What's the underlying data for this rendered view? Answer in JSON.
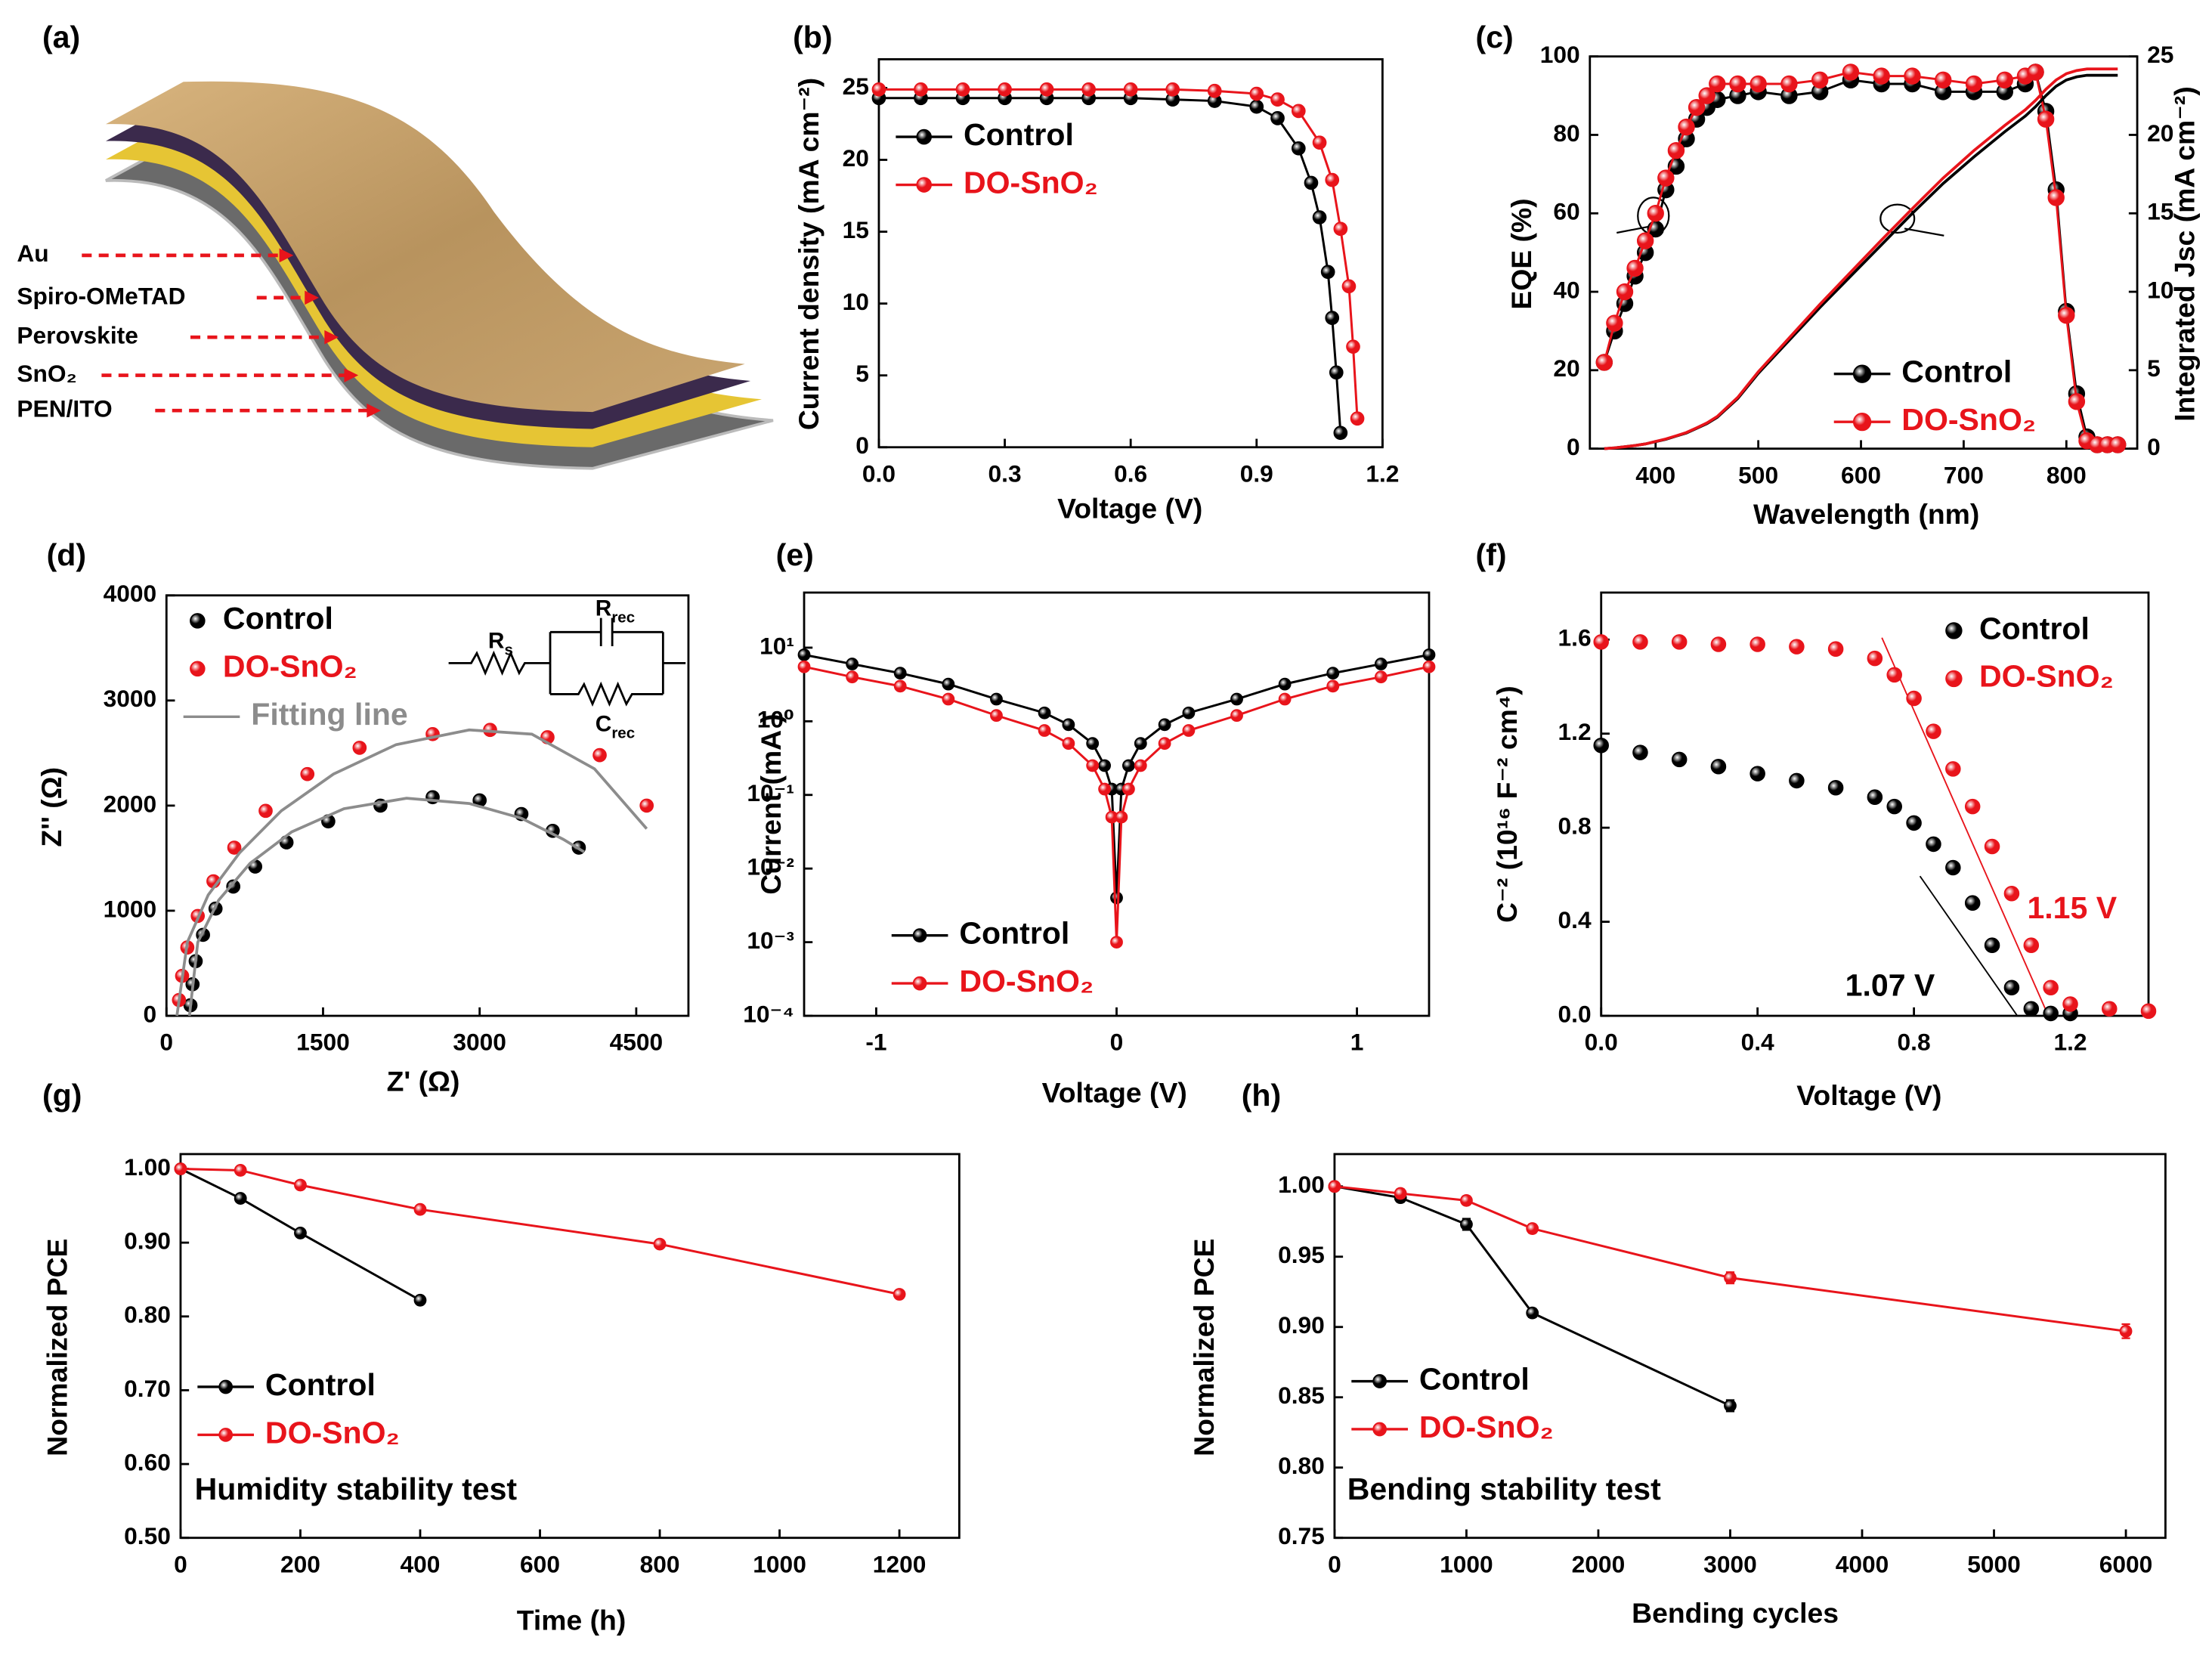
{
  "diagram": {
    "label": "(a)",
    "layers": [
      "Au",
      "Spiro-OMeTAD",
      "Perovskite",
      "SnO₂",
      "PEN/ITO"
    ]
  },
  "chart_data": [
    {
      "panel": "(b)",
      "type": "line",
      "xlabel": "Voltage (V)",
      "ylabel": "Current density (mA cm⁻²)",
      "xlim": [
        0,
        1.2
      ],
      "ylim": [
        0,
        27
      ],
      "xticks": [
        {
          "value": 0,
          "label": "0.0"
        },
        0.3,
        0.6,
        0.9,
        1.2
      ],
      "yticks": [
        0,
        5,
        10,
        15,
        20,
        25
      ],
      "legend": "upper left",
      "series": [
        {
          "name": "Control",
          "color": "#000000",
          "mode": "lines+markers",
          "x": [
            0,
            0.1,
            0.2,
            0.3,
            0.4,
            0.5,
            0.6,
            0.7,
            0.8,
            0.9,
            0.95,
            1.0,
            1.03,
            1.05,
            1.07,
            1.08,
            1.09,
            1.1
          ],
          "values": [
            24.3,
            24.3,
            24.3,
            24.3,
            24.3,
            24.3,
            24.3,
            24.2,
            24.1,
            23.7,
            22.9,
            20.8,
            18.4,
            16,
            12.2,
            9,
            5.2,
            1
          ]
        },
        {
          "name": "DO-SnO₂",
          "color": "#e8141b",
          "mode": "lines+markers",
          "x": [
            0,
            0.1,
            0.2,
            0.3,
            0.4,
            0.5,
            0.6,
            0.7,
            0.8,
            0.9,
            0.95,
            1.0,
            1.05,
            1.08,
            1.1,
            1.12,
            1.13,
            1.14
          ],
          "values": [
            24.9,
            24.9,
            24.9,
            24.9,
            24.9,
            24.9,
            24.9,
            24.9,
            24.8,
            24.6,
            24.2,
            23.4,
            21.2,
            18.6,
            15.2,
            11.2,
            7,
            2
          ]
        }
      ]
    },
    {
      "panel": "(c)",
      "type": "line",
      "xlabel": "Wavelength (nm)",
      "ylabel": "EQE (%)",
      "y2label": "Integrated Jsc (mA cm⁻²)",
      "xlim": [
        336,
        869
      ],
      "ylim": [
        0,
        100
      ],
      "y2lim": [
        0,
        25
      ],
      "xticks": [
        400,
        500,
        600,
        700,
        800
      ],
      "yticks": [
        0,
        20,
        40,
        60,
        80,
        100
      ],
      "y2ticks": [
        0,
        5,
        10,
        15,
        20,
        25
      ],
      "legend": "lower right",
      "x": [
        350,
        360,
        370,
        380,
        390,
        400,
        410,
        420,
        430,
        440,
        450,
        460,
        480,
        500,
        530,
        560,
        590,
        620,
        650,
        680,
        710,
        740,
        760,
        770,
        780,
        790,
        800,
        810,
        820,
        830,
        840,
        850
      ],
      "series": [
        {
          "name": "Control",
          "color": "#000000",
          "mode": "lines+markers",
          "values": [
            22,
            30,
            37,
            44,
            50,
            56,
            66,
            72,
            79,
            84,
            87,
            89,
            90,
            91,
            90,
            91,
            94,
            93,
            93,
            91,
            91,
            91,
            93,
            96,
            86,
            66,
            35,
            14,
            3,
            1,
            1,
            1
          ]
        },
        {
          "name": "DO-SnO₂",
          "color": "#e8141b",
          "mode": "lines+markers",
          "values": [
            22,
            32,
            40,
            46,
            53,
            60,
            69,
            76,
            82,
            87,
            90,
            93,
            93,
            93,
            93,
            94,
            96,
            95,
            95,
            94,
            93,
            94,
            95,
            96,
            84,
            64,
            34,
            12,
            2,
            1,
            1,
            1
          ]
        },
        {
          "color": "#000000",
          "mode": "lines",
          "axis": "y2",
          "values": [
            0,
            0.05,
            0.12,
            0.2,
            0.3,
            0.45,
            0.6,
            0.8,
            1.0,
            1.3,
            1.6,
            2.0,
            3.2,
            4.8,
            6.9,
            9.0,
            11.0,
            13.0,
            15.0,
            16.9,
            18.6,
            20.2,
            21.2,
            21.8,
            22.5,
            23.1,
            23.5,
            23.7,
            23.8,
            23.8,
            23.8,
            23.8
          ]
        },
        {
          "color": "#e8141b",
          "mode": "lines",
          "axis": "y2",
          "values": [
            0,
            0.05,
            0.12,
            0.2,
            0.3,
            0.46,
            0.62,
            0.82,
            1.03,
            1.33,
            1.64,
            2.05,
            3.27,
            4.9,
            7.05,
            9.2,
            11.25,
            13.3,
            15.3,
            17.25,
            19.0,
            20.6,
            21.6,
            22.2,
            22.9,
            23.5,
            23.9,
            24.1,
            24.2,
            24.2,
            24.2,
            24.2
          ]
        }
      ]
    },
    {
      "panel": "(d)",
      "type": "scatter",
      "xlabel": "Z' (Ω)",
      "ylabel": "Z'' (Ω)",
      "xlim": [
        0,
        5000
      ],
      "ylim": [
        0,
        4000
      ],
      "xticks": [
        0,
        1500,
        3000,
        4500
      ],
      "yticks": [
        0,
        1000,
        2000,
        3000,
        4000
      ],
      "legend": "upper left",
      "series": [
        {
          "name": "Control",
          "color": "#000000",
          "mode": "markers",
          "x": [
            230,
            250,
            280,
            350,
            470,
            640,
            850,
            1150,
            1550,
            2050,
            2550,
            3000,
            3400,
            3700,
            3950
          ],
          "values": [
            100,
            300,
            520,
            770,
            1020,
            1230,
            1420,
            1650,
            1850,
            2000,
            2080,
            2050,
            1920,
            1760,
            1600
          ]
        },
        {
          "name": "DO-SnO₂",
          "color": "#e8141b",
          "mode": "markers",
          "x": [
            120,
            150,
            200,
            300,
            450,
            650,
            950,
            1350,
            1850,
            2550,
            3100,
            3650,
            4150,
            4600
          ],
          "values": [
            150,
            380,
            650,
            950,
            1280,
            1600,
            1950,
            2300,
            2550,
            2680,
            2720,
            2650,
            2480,
            2000
          ]
        },
        {
          "name": "Fitting line",
          "color": "#8c8c8c",
          "mode": "lines",
          "x": [
            220,
            300,
            500,
            800,
            1200,
            1700,
            2300,
            2900,
            3400,
            3800,
            4000,
            null,
            100,
            200,
            400,
            700,
            1100,
            1600,
            2200,
            2900,
            3500,
            4100,
            4600
          ],
          "values": [
            0,
            700,
            1100,
            1450,
            1750,
            1970,
            2070,
            2020,
            1880,
            1680,
            1560,
            null,
            0,
            700,
            1150,
            1550,
            1950,
            2300,
            2580,
            2720,
            2680,
            2350,
            1780
          ]
        }
      ],
      "annotations": [
        {
          "text": "R",
          "sub": "s"
        },
        {
          "text": "R",
          "sub": "rec"
        },
        {
          "text": "C",
          "sub": "rec"
        }
      ]
    },
    {
      "panel": "(e)",
      "type": "line",
      "xlabel": "Voltage (V)",
      "ylabel": "Current (mA )",
      "ylog": true,
      "xlim": [
        -1.3,
        1.3
      ],
      "ylim": [
        0.0001,
        56
      ],
      "xticks": [
        -1,
        0,
        1
      ],
      "yticks": [
        {
          "value": 0.0001,
          "label": "10⁻⁴"
        },
        {
          "value": 0.001,
          "label": "10⁻³"
        },
        {
          "value": 0.01,
          "label": "10⁻²"
        },
        {
          "value": 0.1,
          "label": "10⁻¹"
        },
        {
          "value": 1,
          "label": "10⁰"
        },
        {
          "value": 10,
          "label": "10¹"
        }
      ],
      "legend": "lower left",
      "x": [
        -1.3,
        -1.1,
        -0.9,
        -0.7,
        -0.5,
        -0.3,
        -0.2,
        -0.1,
        -0.05,
        -0.02,
        0,
        0.02,
        0.05,
        0.1,
        0.2,
        0.3,
        0.5,
        0.7,
        0.9,
        1.1,
        1.3
      ],
      "series": [
        {
          "name": "Control",
          "color": "#000000",
          "mode": "lines+markers",
          "values": [
            8,
            6,
            4.5,
            3.2,
            2,
            1.3,
            0.9,
            0.5,
            0.25,
            0.12,
            0.004,
            0.12,
            0.25,
            0.5,
            0.9,
            1.3,
            2,
            3.2,
            4.5,
            6,
            8
          ]
        },
        {
          "name": "DO-SnO₂",
          "color": "#e8141b",
          "mode": "lines+markers",
          "values": [
            5.5,
            4,
            3,
            2,
            1.2,
            0.75,
            0.5,
            0.25,
            0.12,
            0.05,
            0.001,
            0.05,
            0.12,
            0.25,
            0.5,
            0.75,
            1.2,
            2,
            3,
            4,
            5.5
          ]
        }
      ]
    },
    {
      "panel": "(f)",
      "type": "scatter",
      "xlabel": "Voltage (V)",
      "ylabel": "C⁻² (10¹⁶ F⁻² cm⁴)",
      "xlim": [
        0,
        1.4
      ],
      "ylim": [
        0,
        1.8
      ],
      "xticks": [
        {
          "value": 0,
          "label": "0.0"
        },
        0.4,
        0.8,
        1.2
      ],
      "yticks": [
        {
          "value": 0,
          "label": "0.0"
        },
        0.4,
        0.8,
        1.2,
        1.6
      ],
      "legend": "upper right",
      "series": [
        {
          "name": "Control",
          "color": "#000000",
          "mode": "markers",
          "x": [
            0,
            0.1,
            0.2,
            0.3,
            0.4,
            0.5,
            0.6,
            0.7,
            0.75,
            0.8,
            0.85,
            0.9,
            0.95,
            1.0,
            1.05,
            1.1,
            1.15,
            1.2
          ],
          "values": [
            1.15,
            1.12,
            1.09,
            1.06,
            1.03,
            1.0,
            0.97,
            0.93,
            0.89,
            0.82,
            0.73,
            0.63,
            0.48,
            0.3,
            0.12,
            0.03,
            0.01,
            0.01
          ]
        },
        {
          "name": "DO-SnO₂",
          "color": "#e8141b",
          "mode": "markers",
          "x": [
            0,
            0.1,
            0.2,
            0.3,
            0.4,
            0.5,
            0.6,
            0.7,
            0.75,
            0.8,
            0.85,
            0.9,
            0.95,
            1.0,
            1.05,
            1.1,
            1.15,
            1.2,
            1.3,
            1.4
          ],
          "values": [
            1.59,
            1.59,
            1.59,
            1.58,
            1.58,
            1.57,
            1.56,
            1.52,
            1.45,
            1.35,
            1.21,
            1.05,
            0.89,
            0.72,
            0.52,
            0.3,
            0.12,
            0.05,
            0.03,
            0.02
          ]
        }
      ],
      "annotations": [
        {
          "text": "1.07 V",
          "color": "#000000"
        },
        {
          "text": "1.15 V",
          "color": "#e8141b"
        }
      ]
    },
    {
      "panel": "(g)",
      "type": "line",
      "xlabel": "Time (h)",
      "ylabel": "Normalized PCE",
      "xlim": [
        0,
        1300
      ],
      "ylim": [
        0.5,
        1.02
      ],
      "xticks": [
        0,
        200,
        400,
        600,
        800,
        1000,
        1200
      ],
      "yticks": [
        {
          "value": 0.5,
          "label": "0.50"
        },
        {
          "value": 0.6,
          "label": "0.60"
        },
        {
          "value": 0.7,
          "label": "0.70"
        },
        {
          "value": 0.8,
          "label": "0.80"
        },
        {
          "value": 0.9,
          "label": "0.90"
        },
        {
          "value": 1,
          "label": "1.00"
        }
      ],
      "legend": "lower left",
      "series": [
        {
          "name": "Control",
          "color": "#000000",
          "mode": "lines+markers",
          "x": [
            0,
            100,
            200,
            400
          ],
          "values": [
            1.0,
            0.96,
            0.913,
            0.822
          ],
          "errors": [
            0,
            0.004,
            0.004,
            0.005
          ]
        },
        {
          "name": "DO-SnO₂",
          "color": "#e8141b",
          "mode": "lines+markers",
          "x": [
            0,
            100,
            200,
            400,
            800,
            1200
          ],
          "values": [
            1.0,
            0.998,
            0.978,
            0.945,
            0.898,
            0.83
          ],
          "errors": [
            0,
            0.003,
            0.003,
            0.003,
            0.004,
            0.004
          ]
        }
      ],
      "annotations": [
        {
          "text": "Humidity stability test",
          "color": "#000000"
        }
      ]
    },
    {
      "panel": "(h)",
      "type": "line",
      "xlabel": "Bending cycles",
      "ylabel": "Normalized PCE",
      "xlim": [
        0,
        6300
      ],
      "ylim": [
        0.75,
        1.023
      ],
      "xticks": [
        0,
        1000,
        2000,
        3000,
        4000,
        5000,
        6000
      ],
      "yticks": [
        {
          "value": 0.75,
          "label": "0.75"
        },
        {
          "value": 0.8,
          "label": "0.80"
        },
        0.85,
        {
          "value": 0.9,
          "label": "0.90"
        },
        0.95,
        {
          "value": 1,
          "label": "1.00"
        }
      ],
      "legend": "lower left",
      "series": [
        {
          "name": "Control",
          "color": "#000000",
          "mode": "lines+markers",
          "x": [
            0,
            500,
            1000,
            1500,
            3000
          ],
          "values": [
            1.0,
            0.992,
            0.973,
            0.91,
            0.844
          ],
          "errors": [
            0,
            0.003,
            0.004,
            0.003,
            0.004
          ]
        },
        {
          "name": "DO-SnO₂",
          "color": "#e8141b",
          "mode": "lines+markers",
          "x": [
            0,
            500,
            1000,
            1500,
            3000,
            6000
          ],
          "values": [
            1.0,
            0.995,
            0.99,
            0.97,
            0.935,
            0.897
          ],
          "errors": [
            0,
            0.003,
            0.003,
            0.003,
            0.004,
            0.005
          ]
        }
      ],
      "annotations": [
        {
          "text": "Bending stability test",
          "color": "#000000"
        }
      ]
    }
  ]
}
